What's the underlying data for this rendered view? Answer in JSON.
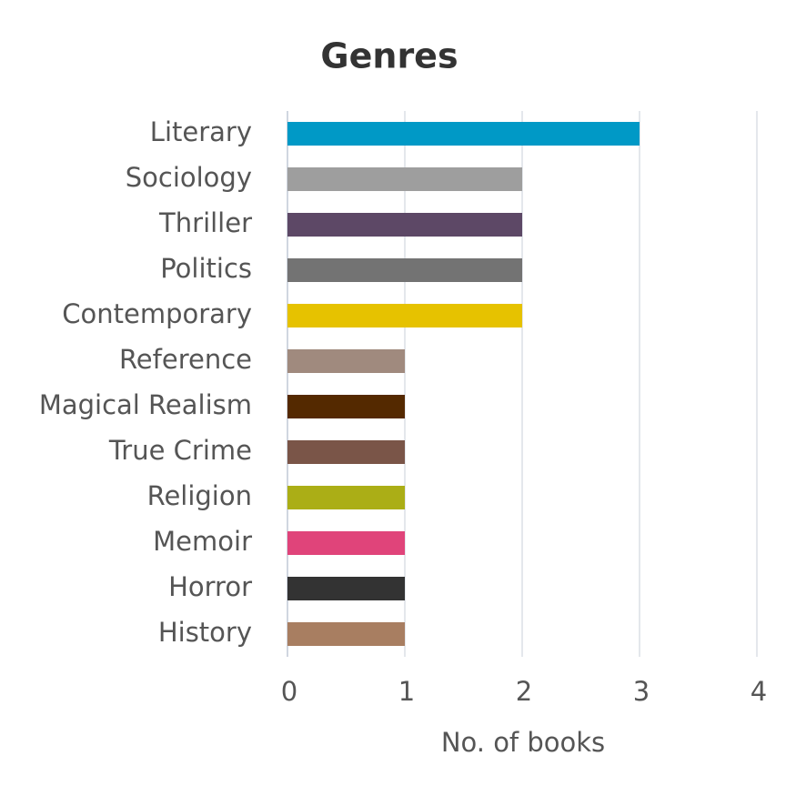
{
  "chart_data": {
    "type": "bar",
    "title": "Genres",
    "x_label": "No. of books",
    "categories": [
      "Literary",
      "Sociology",
      "Thriller",
      "Politics",
      "Contemporary",
      "Reference",
      "Magical Realism",
      "True Crime",
      "Religion",
      "Memoir",
      "Horror",
      "History"
    ],
    "values": [
      3,
      2,
      2,
      2,
      2,
      1,
      1,
      1,
      1,
      1,
      1,
      1
    ],
    "colors": [
      "#0099c6",
      "#9e9e9e",
      "#5d4866",
      "#737373",
      "#e6c200",
      "#a08a7e",
      "#542900",
      "#7a5548",
      "#abae16",
      "#e0447a",
      "#333333",
      "#a87e61"
    ],
    "xlim": [
      0,
      4
    ],
    "xticks": [
      0,
      1,
      2,
      3,
      4
    ],
    "grid": true
  }
}
